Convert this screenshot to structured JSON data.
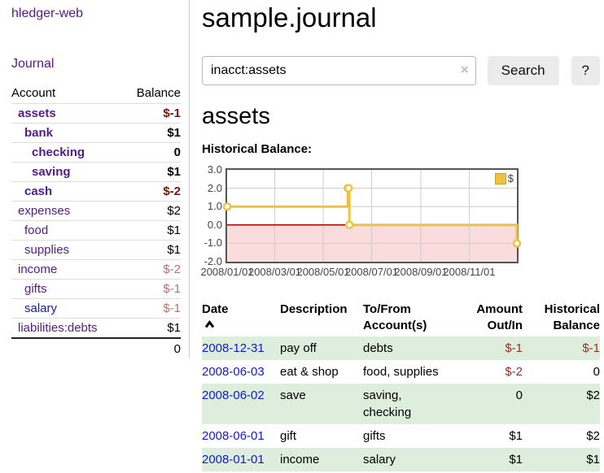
{
  "colors": {
    "link_purple": "#551a8b",
    "link_blue": "#1414dd",
    "negative_strong": "#7d130d",
    "negative": "#943029",
    "negative_muted": "#c0706b",
    "row_highlight_green": "#ddeedd",
    "button_bg": "#ebebeb",
    "chart_series": "#edc240",
    "chart_border": "#545454",
    "chart_grid": "#cccccc",
    "chart_zero_line": "#aa0000",
    "chart_negative_region": "#fbdcdc"
  },
  "app_title": "hledger-web",
  "sidebar": {
    "journal_link": "Journal",
    "accounts_table": {
      "col_account": "Account",
      "col_balance": "Balance",
      "rows": [
        {
          "account": "assets",
          "balance": "$-1"
        },
        {
          "account": "bank",
          "balance": "$1"
        },
        {
          "account": "checking",
          "balance": "0"
        },
        {
          "account": "saving",
          "balance": "$1"
        },
        {
          "account": "cash",
          "balance": "$-2"
        },
        {
          "account": "expenses",
          "balance": "$2"
        },
        {
          "account": "food",
          "balance": "$1"
        },
        {
          "account": "supplies",
          "balance": "$1"
        },
        {
          "account": "income",
          "balance": "$-2"
        },
        {
          "account": "gifts",
          "balance": "$-1"
        },
        {
          "account": "salary",
          "balance": "$-1"
        },
        {
          "account": "liabilities:debts",
          "balance": "$1"
        }
      ],
      "total": "0"
    }
  },
  "main": {
    "title": "sample.journal",
    "search": {
      "value": "inacct:assets",
      "clear_icon": "×",
      "search_button": "Search",
      "help_button": "?"
    },
    "account_heading": "assets",
    "chart_label": "Historical Balance:",
    "register": {
      "columns": {
        "date": "Date",
        "sort_icon": "chevron-up",
        "description": "Description",
        "accounts_line1": "To/From",
        "accounts_line2": "Account(s)",
        "amount_line1": "Amount",
        "amount_line2": "Out/In",
        "balance_line1": "Historical",
        "balance_line2": "Balance"
      },
      "rows": [
        {
          "date": "2008-12-31",
          "description": "pay off",
          "accounts": "debts",
          "amount": "$-1",
          "balance": "$-1"
        },
        {
          "date": "2008-06-03",
          "description": "eat & shop",
          "accounts": "food, supplies",
          "amount": "$-2",
          "balance": "0"
        },
        {
          "date": "2008-06-02",
          "description": "save",
          "accounts": "saving, checking",
          "amount": "0",
          "balance": "$2"
        },
        {
          "date": "2008-06-01",
          "description": "gift",
          "accounts": "gifts",
          "amount": "$1",
          "balance": "$2"
        },
        {
          "date": "2008-01-01",
          "description": "income",
          "accounts": "salary",
          "amount": "$1",
          "balance": "$1"
        }
      ]
    }
  },
  "chart_data": {
    "type": "line",
    "title": "Historical Balance",
    "step": true,
    "legend": "$",
    "legend_position": "top-right",
    "grid": true,
    "negative_region_shaded": true,
    "xlim": [
      "2008-01-01",
      "2008-12-31"
    ],
    "ylim": [
      -2,
      3
    ],
    "y_ticks": [
      3,
      2,
      1,
      0,
      -1,
      -2
    ],
    "y_tick_labels": [
      "3.0",
      "2.0",
      "1.0",
      "0.0",
      "-1.0",
      "-2.0"
    ],
    "x_ticks": [
      "2008-01-01",
      "2008-03-01",
      "2008-05-01",
      "2008-07-01",
      "2008-09-01",
      "2008-11-01"
    ],
    "x_tick_labels": [
      "2008/01/01",
      "2008/03/01",
      "2008/05/01",
      "2008/07/01",
      "2008/09/01",
      "2008/11/01"
    ],
    "series": [
      {
        "name": "$",
        "points": [
          [
            "2008-01-01",
            1
          ],
          [
            "2008-06-01",
            2
          ],
          [
            "2008-06-02",
            2
          ],
          [
            "2008-06-03",
            0
          ],
          [
            "2008-12-31",
            -1
          ]
        ]
      }
    ]
  }
}
